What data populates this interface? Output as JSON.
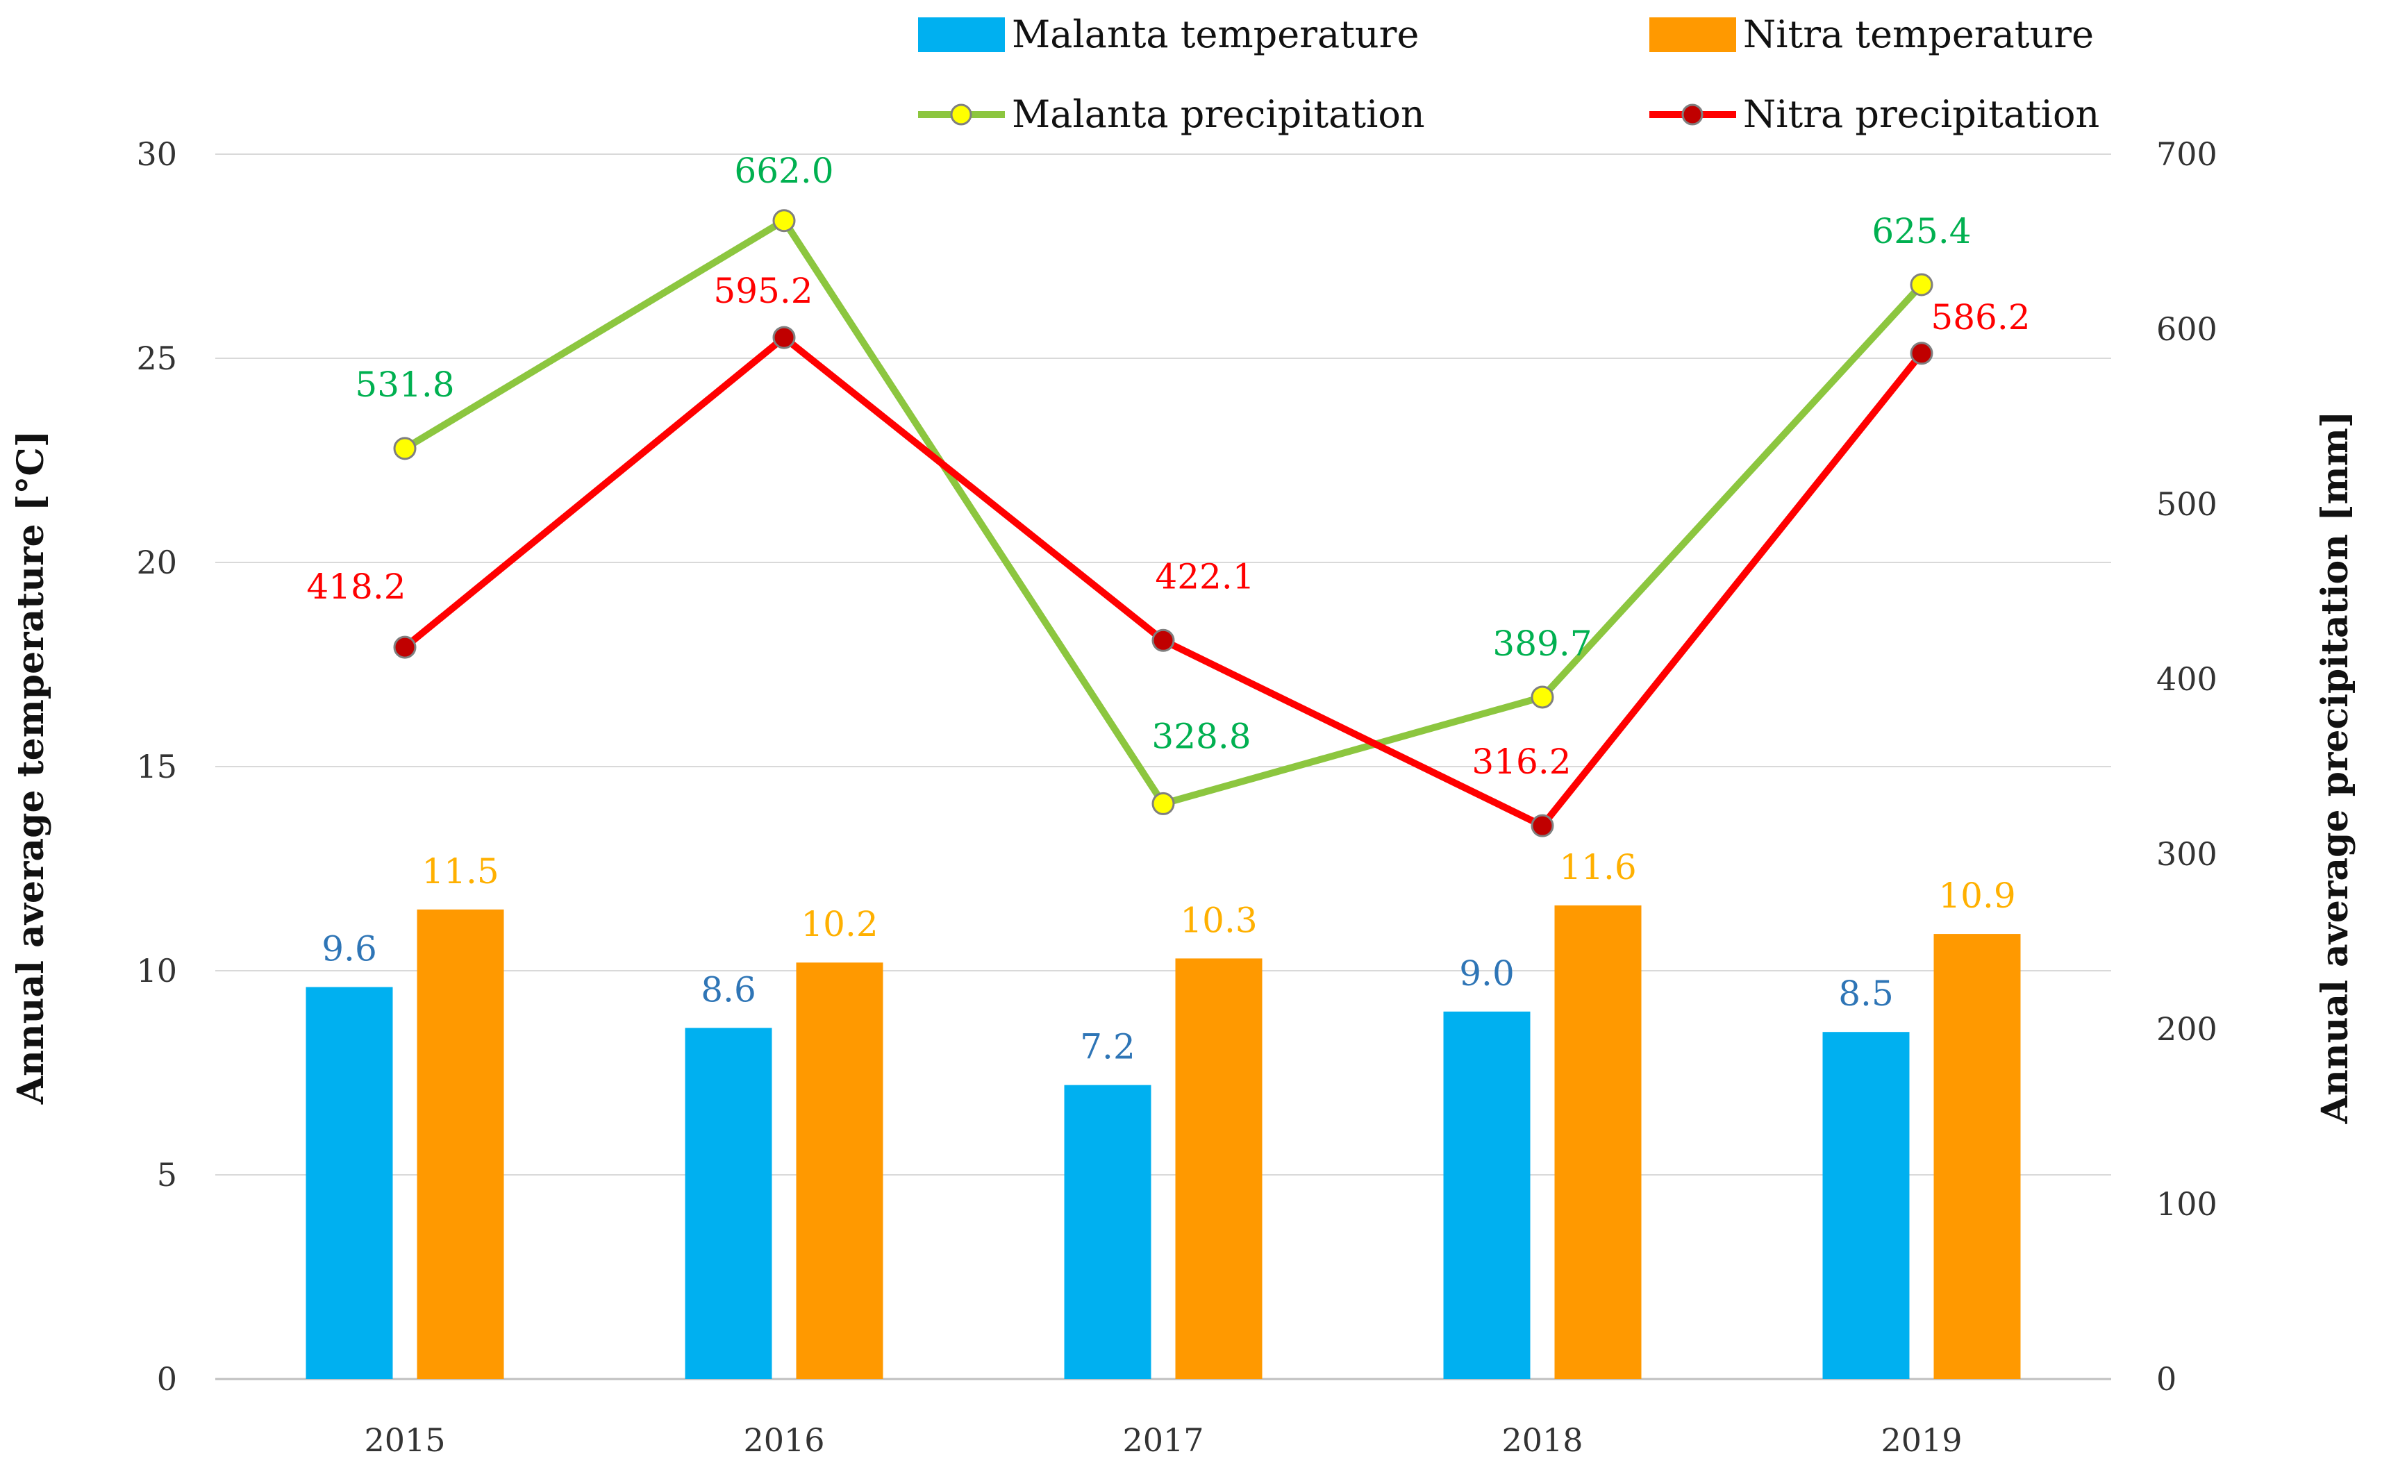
{
  "chart_data": {
    "type": "bar",
    "title": "",
    "categories": [
      "2015",
      "2016",
      "2017",
      "2018",
      "2019"
    ],
    "xlabel": "",
    "ylabel": "Annual average temperature [°C]",
    "y2label": "Annual average precipitation [mm]",
    "ylim": [
      0,
      30
    ],
    "y2lim": [
      0,
      700
    ],
    "yticks": [
      "0",
      "5",
      "10",
      "15",
      "20",
      "25",
      "30"
    ],
    "y2ticks": [
      "0",
      "100",
      "200",
      "300",
      "400",
      "500",
      "600",
      "700"
    ],
    "grid": true,
    "legend_position": "top",
    "series": [
      {
        "name": "Malanta temperature",
        "kind": "bar",
        "axis": "left",
        "color": "#00B0F0",
        "label_color": "#2E75B6",
        "values": [
          9.6,
          8.6,
          7.2,
          9.0,
          8.5
        ],
        "labels": [
          "9.6",
          "8.6",
          "7.2",
          "9.0",
          "8.5"
        ]
      },
      {
        "name": "Nitra temperature",
        "kind": "bar",
        "axis": "left",
        "color": "#FF9900",
        "label_color": "#FFB000",
        "values": [
          11.5,
          10.2,
          10.3,
          11.6,
          10.9
        ],
        "labels": [
          "11.5",
          "10.2",
          "10.3",
          "11.6",
          "10.9"
        ]
      },
      {
        "name": "Malanta precipitation",
        "kind": "line",
        "axis": "right",
        "color": "#8CC63F",
        "marker_color": "#FFFF00",
        "label_color": "#00B050",
        "values": [
          531.8,
          662.0,
          328.8,
          389.7,
          625.4
        ],
        "labels": [
          "531.8",
          "662.0",
          "328.8",
          "389.7",
          "625.4"
        ]
      },
      {
        "name": "Nitra precipitation",
        "kind": "line",
        "axis": "right",
        "color": "#FF0000",
        "marker_color": "#C00000",
        "label_color": "#FF0000",
        "values": [
          418.2,
          595.2,
          422.1,
          316.2,
          586.2
        ],
        "labels": [
          "418.2",
          "595.2",
          "422.1",
          "316.2",
          "586.2"
        ]
      }
    ]
  }
}
